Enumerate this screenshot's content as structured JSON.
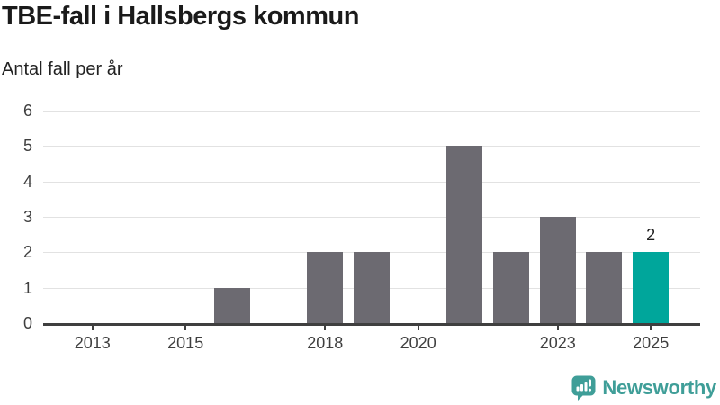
{
  "header": {
    "title": "TBE-fall i Hallsbergs kommun",
    "subtitle": "Antal fall per år"
  },
  "footer": {
    "logo_text": "Newsworthy",
    "logo_icon": "bar-chart-speech-bubble-icon",
    "logo_color": "#3f9e98"
  },
  "chart_data": {
    "type": "bar",
    "title": "TBE-fall i Hallsbergs kommun",
    "subtitle": "Antal fall per år",
    "categories": [
      2012,
      2013,
      2014,
      2015,
      2016,
      2017,
      2018,
      2019,
      2020,
      2021,
      2022,
      2023,
      2024,
      2025
    ],
    "values": [
      0,
      0,
      0,
      0,
      1,
      0,
      2,
      2,
      0,
      5,
      2,
      3,
      2,
      2
    ],
    "xlabel": "",
    "ylabel": "Antal fall per år",
    "ylim": [
      0,
      6
    ],
    "yticks": [
      0,
      1,
      2,
      3,
      4,
      5,
      6
    ],
    "xticks": [
      2013,
      2015,
      2018,
      2020,
      2023,
      2025
    ],
    "xdomain": [
      2011.94,
      2026.06
    ],
    "grid": "horizontal",
    "legend": "none",
    "bar_color": "#6c6a71",
    "grid_color": "#e2e2e2",
    "axis_color": "#3f3f3f",
    "highlight": {
      "year": 2025,
      "value": 2,
      "color": "#00a69b",
      "label": "2"
    }
  }
}
